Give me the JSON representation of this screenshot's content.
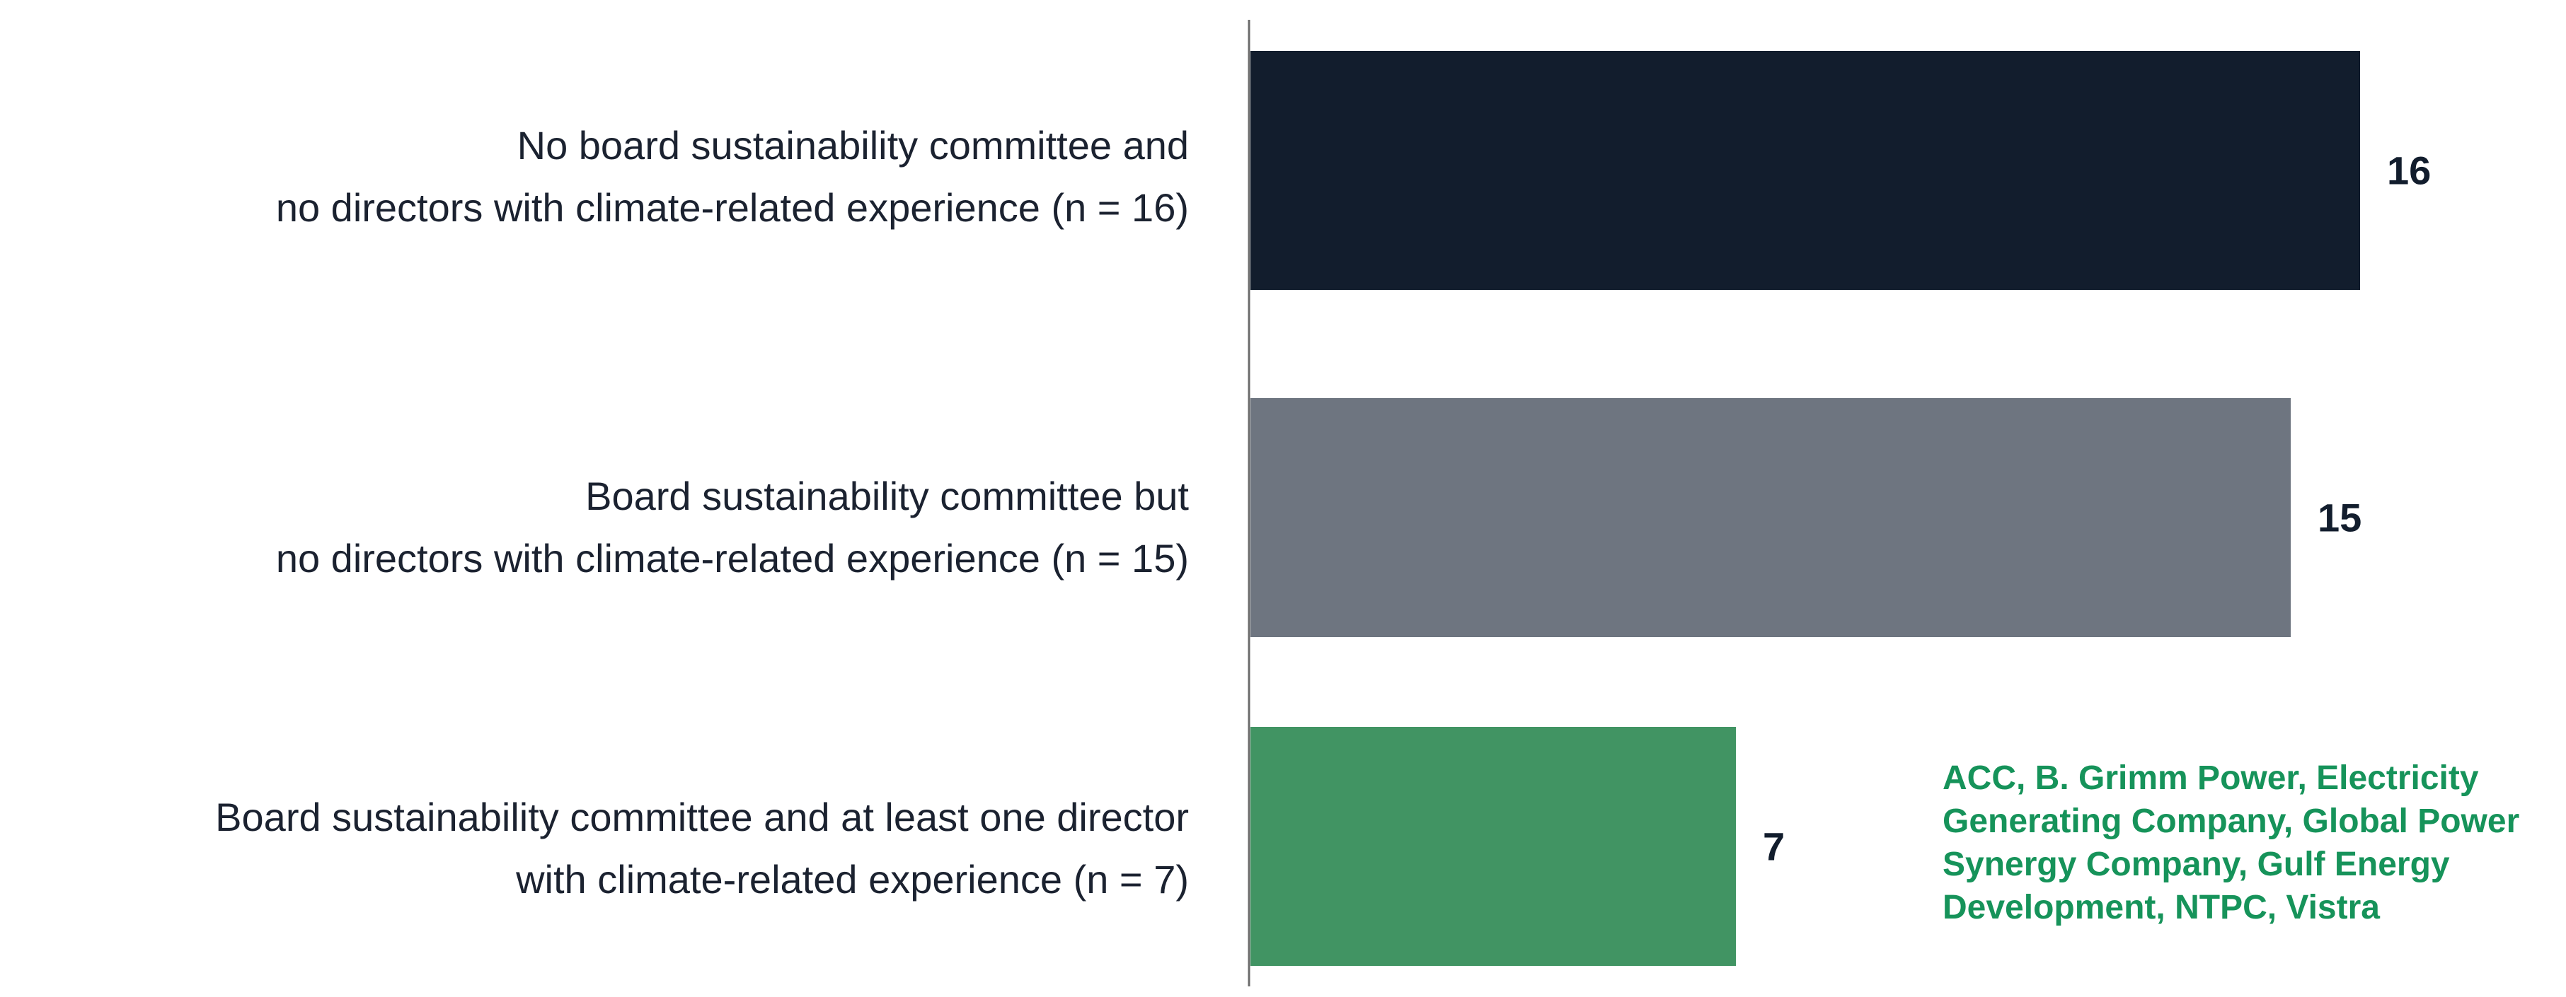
{
  "chart_data": {
    "type": "bar",
    "orientation": "horizontal",
    "title": "",
    "xlabel": "",
    "ylabel": "",
    "xlim": [
      0,
      16
    ],
    "grid": false,
    "legend": "none",
    "categories": [
      {
        "line1": "No board sustainability committee and",
        "line2": "no directors with climate-related experience (n = 16)"
      },
      {
        "line1": "Board sustainability committee but",
        "line2": "no directors with climate-related experience (n = 15)"
      },
      {
        "line1": "Board sustainability committee and at least one director",
        "line2": "with climate-related experience (n = 7)"
      }
    ],
    "values": [
      16,
      15,
      7
    ],
    "value_labels": [
      "16",
      "15",
      "7"
    ],
    "colors": [
      "#121d2d",
      "#6e7580",
      "#419463"
    ],
    "annotation": {
      "category_index": 2,
      "text": "ACC, B. Grimm Power, Electricity Generating Company, Global Power Synergy Company, Gulf Energy Development, NTPC, Vistra",
      "color": "#16935a"
    }
  }
}
